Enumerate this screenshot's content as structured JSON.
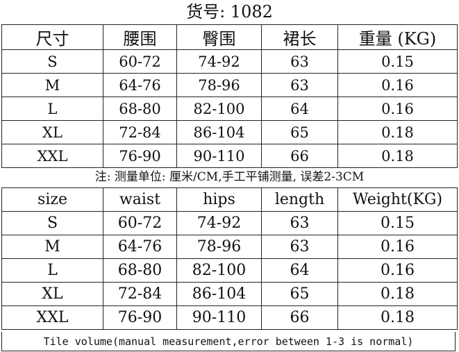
{
  "title": "货号: 1082",
  "cn_table": {
    "headers": [
      "尺寸",
      "腰围",
      "臀围",
      "裙长",
      "重量 (KG)"
    ],
    "rows": [
      [
        "S",
        "60-72",
        "74-92",
        "63",
        "0.15"
      ],
      [
        "M",
        "64-76",
        "78-96",
        "63",
        "0.16"
      ],
      [
        "L",
        "68-80",
        "82-100",
        "64",
        "0.16"
      ],
      [
        "XL",
        "72-84",
        "86-104",
        "65",
        "0.18"
      ],
      [
        "XXL",
        "76-90",
        "90-110",
        "66",
        "0.18"
      ]
    ]
  },
  "note": "注: 测量单位: 厘米/CM,手工平铺测量, 误差2-3CM",
  "en_table": {
    "headers": [
      "size",
      "waist",
      "hips",
      "length",
      "Weight(KG)"
    ],
    "rows": [
      [
        "S",
        "60-72",
        "74-92",
        "63",
        "0.15"
      ],
      [
        "M",
        "64-76",
        "78-96",
        "63",
        "0.16"
      ],
      [
        "L",
        "68-80",
        "82-100",
        "64",
        "0.16"
      ],
      [
        "XL",
        "72-84",
        "86-104",
        "65",
        "0.18"
      ],
      [
        "XXL",
        "76-90",
        "90-110",
        "66",
        "0.18"
      ]
    ]
  },
  "footer": "Tile volume(manual measurement,error between 1-3 is normal)"
}
